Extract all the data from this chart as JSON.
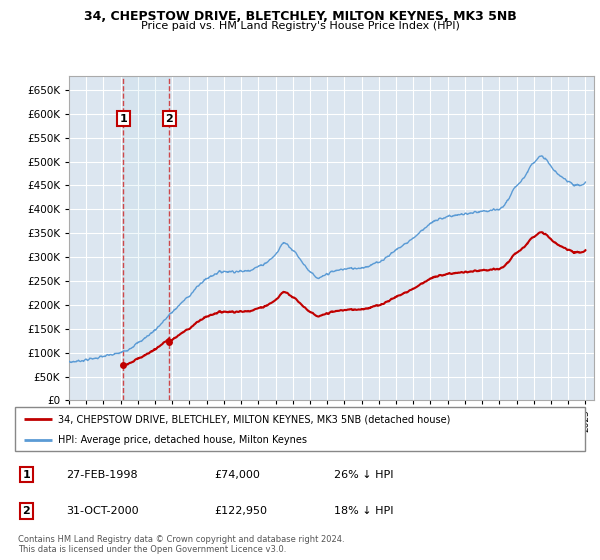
{
  "title1": "34, CHEPSTOW DRIVE, BLETCHLEY, MILTON KEYNES, MK3 5NB",
  "title2": "Price paid vs. HM Land Registry's House Price Index (HPI)",
  "legend_line1": "34, CHEPSTOW DRIVE, BLETCHLEY, MILTON KEYNES, MK3 5NB (detached house)",
  "legend_line2": "HPI: Average price, detached house, Milton Keynes",
  "copyright_text": "Contains HM Land Registry data © Crown copyright and database right 2024.\nThis data is licensed under the Open Government Licence v3.0.",
  "sale1_date": 1998.15,
  "sale1_price": 74000,
  "sale2_date": 2000.83,
  "sale2_price": 122950,
  "hpi_color": "#5b9bd5",
  "price_color": "#c00000",
  "grid_color": "#d0d0d0",
  "box_color": "#c00000",
  "ylim": [
    0,
    680000
  ],
  "xlim_start": 1995.0,
  "xlim_end": 2025.5,
  "sale1_label": "1",
  "sale2_label": "2",
  "sale1_date_str": "27-FEB-1998",
  "sale1_price_str": "£74,000",
  "sale1_hpi_str": "26% ↓ HPI",
  "sale2_date_str": "31-OCT-2000",
  "sale2_price_str": "£122,950",
  "sale2_hpi_str": "18% ↓ HPI"
}
